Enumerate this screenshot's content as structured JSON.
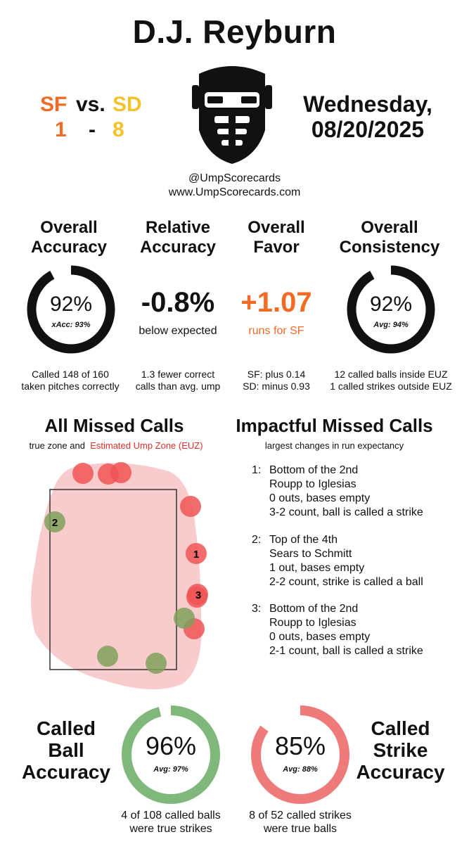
{
  "title": "D.J. Reyburn",
  "game": {
    "away_team": "SF",
    "vs": "vs.",
    "home_team": "SD",
    "away_score": "1",
    "dash": "-",
    "home_score": "8",
    "day": "Wednesday,",
    "date": "08/20/2025"
  },
  "social": {
    "handle": "@UmpScorecards",
    "site": "www.UmpScorecards.com"
  },
  "stats": {
    "accuracy": {
      "hdr1": "Overall",
      "hdr2": "Accuracy",
      "value": "92%",
      "sub": "xAcc: 93%",
      "fraction": 0.92,
      "note1": "Called 148 of 160",
      "note2": "taken pitches correctly"
    },
    "relative": {
      "hdr1": "Relative",
      "hdr2": "Accuracy",
      "value": "-0.8%",
      "sub": "below expected",
      "note1": "1.3 fewer correct",
      "note2": "calls than avg. ump"
    },
    "favor": {
      "hdr1": "Overall",
      "hdr2": "Favor",
      "value": "+1.07",
      "sub": "runs for SF",
      "note1": "SF: plus 0.14",
      "note2": "SD: minus 0.93"
    },
    "consistency": {
      "hdr1": "Overall",
      "hdr2": "Consistency",
      "value": "92%",
      "sub": "Avg: 94%",
      "fraction": 0.92,
      "note1": "12 called balls inside EUZ",
      "note2": "1 called strikes outside EUZ"
    }
  },
  "missed": {
    "title": "All Missed Calls",
    "legend_pre": "true zone and",
    "legend_euz": "Estimated Ump Zone (EUZ)"
  },
  "impactful": {
    "title": "Impactful Missed Calls",
    "subtitle": "largest changes in run expectancy",
    "calls": [
      {
        "num": "1:",
        "inning": "Bottom of the 2nd",
        "matchup": "Roupp to Iglesias",
        "state": "0 outs, bases empty",
        "result": "3-2 count, ball is called a strike"
      },
      {
        "num": "2:",
        "inning": "Top of the 4th",
        "matchup": "Sears to Schmitt",
        "state": "1 out, bases empty",
        "result": "2-2 count, strike is called a ball"
      },
      {
        "num": "3:",
        "inning": "Bottom of the 2nd",
        "matchup": "Roupp to Iglesias",
        "state": "0 outs, bases empty",
        "result": "2-1 count, ball is called a strike"
      }
    ]
  },
  "ball_accuracy": {
    "l1": "Called",
    "l2": "Ball",
    "l3": "Accuracy",
    "value": "96%",
    "sub": "Avg: 97%",
    "fraction": 0.96,
    "note1": "4 of 108 called balls",
    "note2": "were true strikes"
  },
  "strike_accuracy": {
    "l1": "Called",
    "l2": "Strike",
    "l3": "Accuracy",
    "value": "85%",
    "sub": "Avg: 88%",
    "fraction": 0.85,
    "note1": "8 of 52 called strikes",
    "note2": "were true balls"
  },
  "colors": {
    "sf": "#f26a24",
    "sd": "#f4c22b",
    "ring": "#111111",
    "ball_ring": "#7fb87a",
    "strike_ring": "#ee7a7a",
    "euz": "#f8cccc"
  },
  "icons": {
    "umpire_mask": "umpire-mask-icon"
  }
}
